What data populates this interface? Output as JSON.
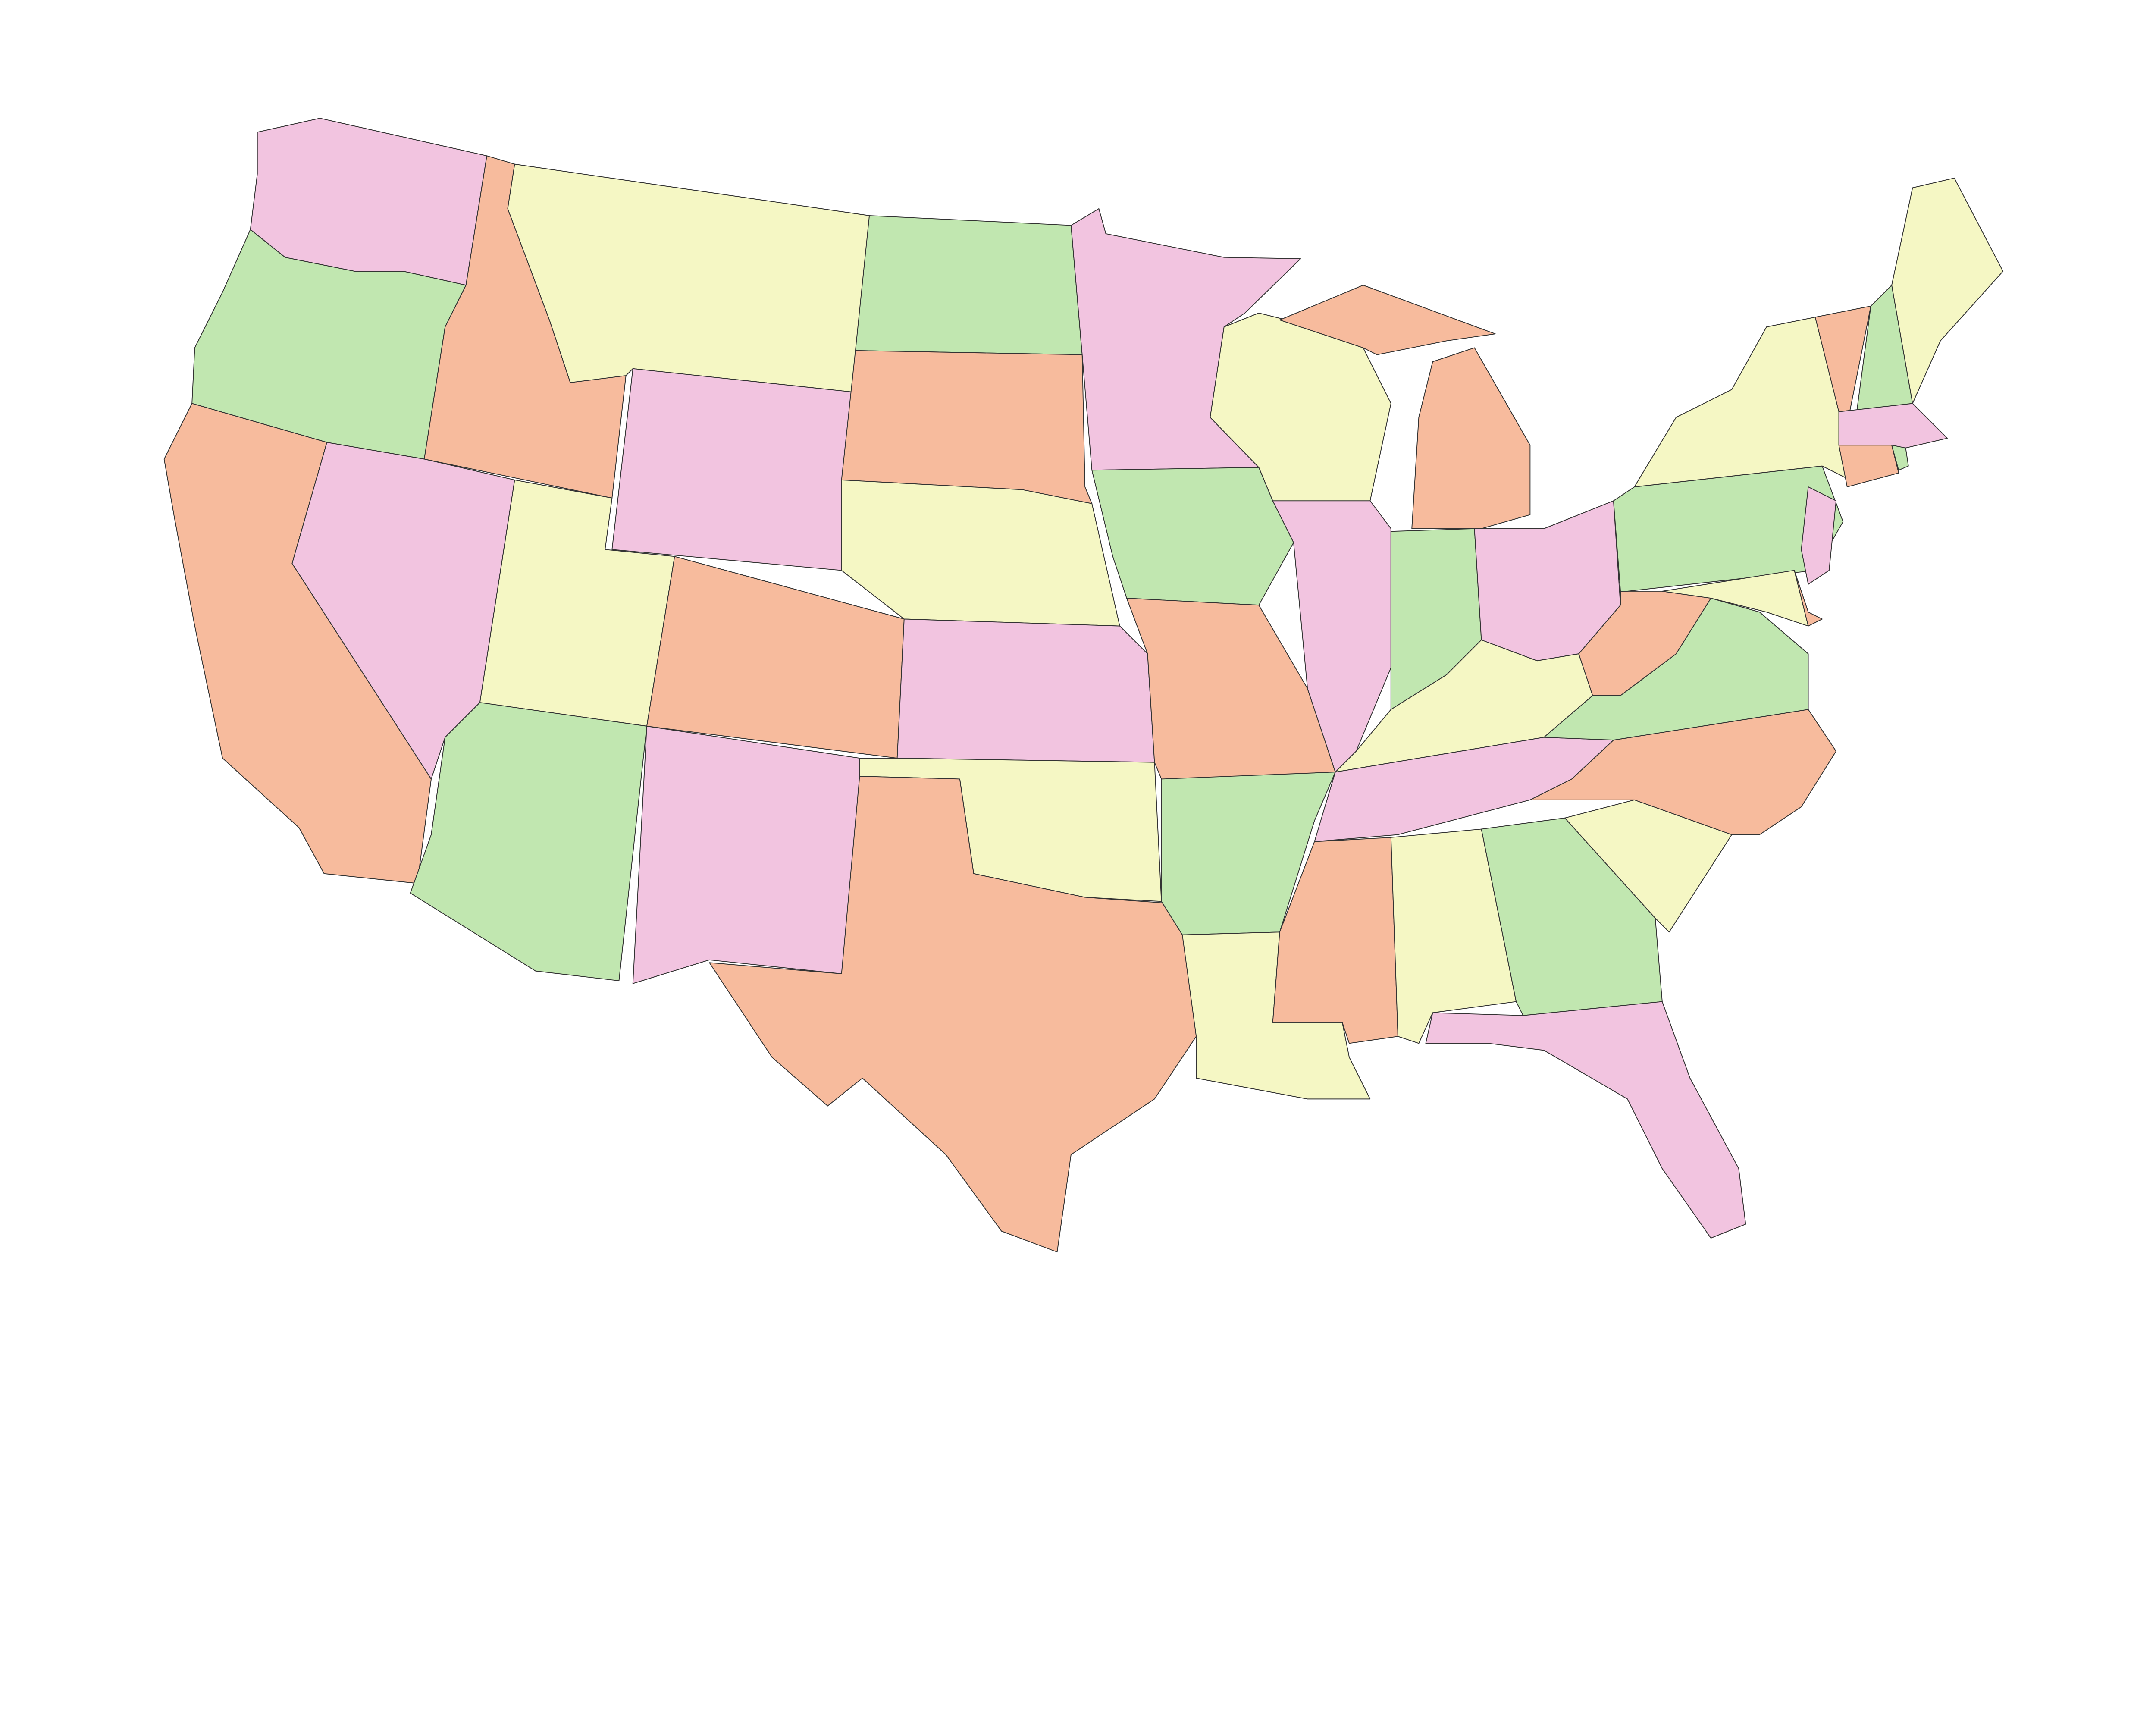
{
  "palette": {
    "pink": "#f2c4e0",
    "yellow": "#f5f7c4",
    "green": "#c1e7b0",
    "orange": "#f7bb9d"
  },
  "background": "#ffffff",
  "border_color": "#333333",
  "states": [
    {
      "id": "washington",
      "fill": "pink"
    },
    {
      "id": "oregon",
      "fill": "green"
    },
    {
      "id": "california",
      "fill": "orange"
    },
    {
      "id": "idaho",
      "fill": "orange"
    },
    {
      "id": "nevada",
      "fill": "pink"
    },
    {
      "id": "montana",
      "fill": "yellow"
    },
    {
      "id": "wyoming",
      "fill": "pink"
    },
    {
      "id": "utah",
      "fill": "yellow"
    },
    {
      "id": "colorado",
      "fill": "orange"
    },
    {
      "id": "arizona",
      "fill": "green"
    },
    {
      "id": "new-mexico",
      "fill": "pink"
    },
    {
      "id": "north-dakota",
      "fill": "green"
    },
    {
      "id": "south-dakota",
      "fill": "orange"
    },
    {
      "id": "nebraska",
      "fill": "yellow"
    },
    {
      "id": "kansas",
      "fill": "pink"
    },
    {
      "id": "oklahoma",
      "fill": "yellow"
    },
    {
      "id": "texas",
      "fill": "orange"
    },
    {
      "id": "minnesota",
      "fill": "pink"
    },
    {
      "id": "iowa",
      "fill": "green"
    },
    {
      "id": "missouri",
      "fill": "orange"
    },
    {
      "id": "arkansas",
      "fill": "green"
    },
    {
      "id": "louisiana",
      "fill": "yellow"
    },
    {
      "id": "wisconsin",
      "fill": "yellow"
    },
    {
      "id": "illinois",
      "fill": "pink"
    },
    {
      "id": "michigan",
      "fill": "orange"
    },
    {
      "id": "indiana",
      "fill": "green"
    },
    {
      "id": "ohio",
      "fill": "pink"
    },
    {
      "id": "kentucky",
      "fill": "yellow"
    },
    {
      "id": "tennessee",
      "fill": "pink"
    },
    {
      "id": "mississippi",
      "fill": "orange"
    },
    {
      "id": "alabama",
      "fill": "yellow"
    },
    {
      "id": "georgia",
      "fill": "green"
    },
    {
      "id": "florida",
      "fill": "pink"
    },
    {
      "id": "south-carolina",
      "fill": "yellow"
    },
    {
      "id": "north-carolina",
      "fill": "orange"
    },
    {
      "id": "virginia",
      "fill": "green"
    },
    {
      "id": "west-virginia",
      "fill": "orange"
    },
    {
      "id": "pennsylvania",
      "fill": "green"
    },
    {
      "id": "new-york",
      "fill": "yellow"
    },
    {
      "id": "new-jersey",
      "fill": "pink"
    },
    {
      "id": "maryland",
      "fill": "yellow"
    },
    {
      "id": "delaware",
      "fill": "orange"
    },
    {
      "id": "vermont",
      "fill": "orange"
    },
    {
      "id": "new-hampshire",
      "fill": "green"
    },
    {
      "id": "maine",
      "fill": "yellow"
    },
    {
      "id": "massachusetts",
      "fill": "pink"
    },
    {
      "id": "connecticut",
      "fill": "orange"
    },
    {
      "id": "rhode-island",
      "fill": "green"
    }
  ]
}
